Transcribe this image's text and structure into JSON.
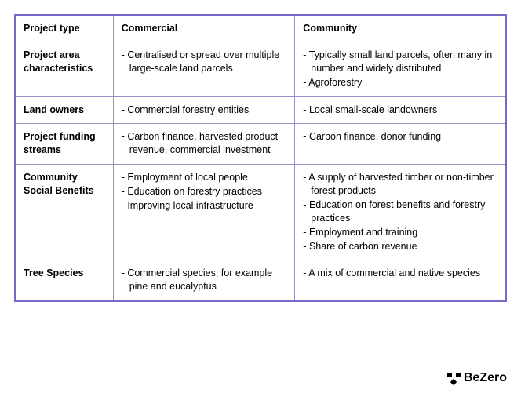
{
  "table": {
    "border_color": "#7b68c4",
    "inner_border_color": "#9a8dc9",
    "text_color": "#000000",
    "background_color": "#ffffff",
    "font_size": 12.5,
    "columns": [
      {
        "key": "project_type",
        "label": "Project type"
      },
      {
        "key": "commercial",
        "label": "Commercial"
      },
      {
        "key": "community",
        "label": "Community"
      }
    ],
    "rows": [
      {
        "label": "Project area characteristics",
        "commercial": [
          "Centralised or spread over multiple large-scale land parcels"
        ],
        "community": [
          "Typically small land parcels, often many in number and widely distributed",
          "Agroforestry"
        ]
      },
      {
        "label": "Land owners",
        "commercial": [
          "Commercial forestry entities"
        ],
        "community": [
          "Local small-scale landowners"
        ]
      },
      {
        "label": "Project funding streams",
        "commercial": [
          "Carbon finance, harvested product revenue, commercial investment"
        ],
        "community": [
          "Carbon finance, donor funding"
        ]
      },
      {
        "label": "Community Social Benefits",
        "commercial": [
          "Employment of local people",
          "Education on forestry practices",
          "Improving local infrastructure"
        ],
        "community": [
          "A supply of harvested timber or non-timber forest products",
          "Education on forest benefits and forestry practices",
          "Employment and training",
          "Share of carbon revenue"
        ]
      },
      {
        "label": "Tree Species",
        "commercial": [
          "Commercial species, for example pine and eucalyptus"
        ],
        "community": [
          "A mix of commercial and native species"
        ]
      }
    ]
  },
  "footer": {
    "brand": "BeZero",
    "icon_name": "bezero-logo-icon"
  }
}
